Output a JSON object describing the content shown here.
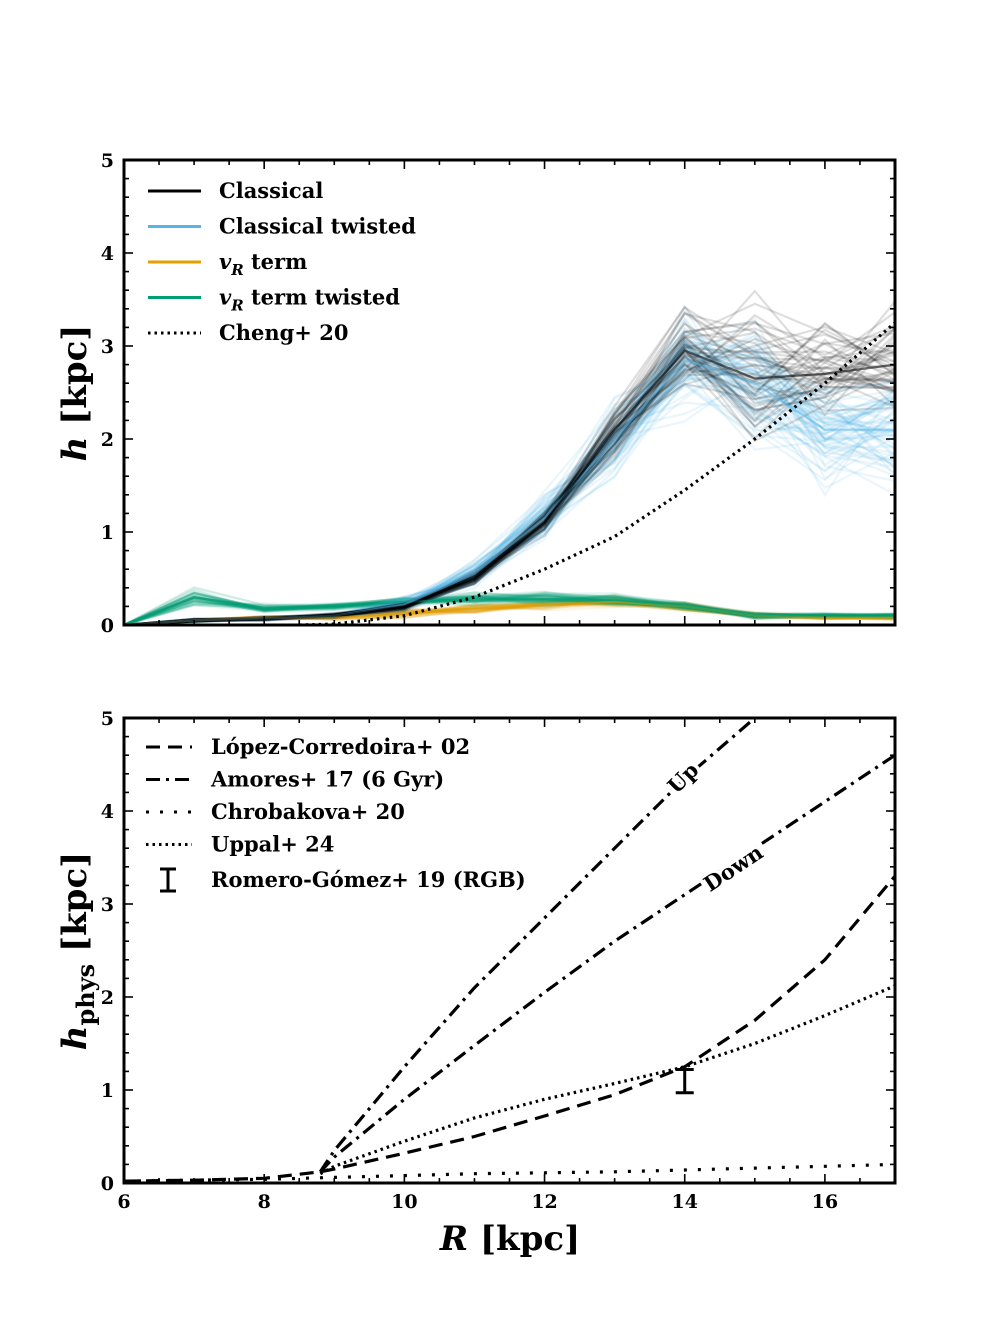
{
  "figure": {
    "top_panel": {
      "ylabel": "h [kpc]",
      "xlim": [
        6,
        17
      ],
      "ylim": [
        0,
        5
      ],
      "yticks": [
        "0",
        "1",
        "2",
        "3",
        "4",
        "5"
      ],
      "legend": [
        {
          "label": "Classical",
          "color": "#000000",
          "style": "solid"
        },
        {
          "label": "Classical twisted",
          "color": "#56b4e9",
          "style": "solid"
        },
        {
          "label": "vR term",
          "color": "#e69f00",
          "style": "solid"
        },
        {
          "label": "vR term twisted",
          "color": "#009e73",
          "style": "solid"
        },
        {
          "label": "Cheng+ 20",
          "color": "#000000",
          "style": "dotted"
        }
      ]
    },
    "bottom_panel": {
      "ylabel": "h_phys [kpc]",
      "xlabel": "R [kpc]",
      "xlim": [
        6,
        17
      ],
      "ylim": [
        0,
        5
      ],
      "xticks": [
        "6",
        "8",
        "10",
        "12",
        "14",
        "16"
      ],
      "yticks": [
        "0",
        "1",
        "2",
        "3",
        "4",
        "5"
      ],
      "legend": [
        {
          "label": "López-Corredoira+ 02",
          "style": "dashed"
        },
        {
          "label": "Amores+ 17 (6 Gyr)",
          "style": "dashdot"
        },
        {
          "label": "Chrobakova+ 20",
          "style": "loosely-dotted"
        },
        {
          "label": "Uppal+ 24",
          "style": "dotted"
        },
        {
          "label": "Romero-Gómez+ 19 (RGB)",
          "style": "errorbar"
        }
      ],
      "annotations": [
        {
          "text": "Up",
          "at_x": 14.05,
          "at_y": 4.3
        },
        {
          "text": "Down",
          "at_x": 14.75,
          "at_y": 3.32
        }
      ]
    }
  },
  "chart_data": [
    {
      "type": "line",
      "title": "",
      "xlabel": "",
      "ylabel": "h [kpc]",
      "xlim": [
        6,
        17
      ],
      "ylim": [
        0,
        5
      ],
      "x": [
        6,
        7,
        8,
        9,
        10,
        11,
        12,
        13,
        14,
        15,
        16,
        17
      ],
      "series": [
        {
          "name": "Classical (median)",
          "values": [
            0.0,
            0.05,
            0.07,
            0.1,
            0.2,
            0.5,
            1.1,
            2.1,
            2.95,
            2.65,
            2.7,
            2.8
          ],
          "spread": [
            0,
            0.02,
            0.02,
            0.03,
            0.05,
            0.08,
            0.12,
            0.3,
            0.5,
            0.8,
            0.6,
            0.6
          ]
        },
        {
          "name": "Classical twisted (median)",
          "values": [
            0.0,
            0.05,
            0.07,
            0.1,
            0.22,
            0.55,
            1.15,
            2.0,
            2.85,
            2.6,
            2.1,
            2.1
          ],
          "spread": [
            0,
            0.02,
            0.02,
            0.03,
            0.08,
            0.15,
            0.25,
            0.4,
            0.6,
            0.8,
            0.7,
            0.7
          ]
        },
        {
          "name": "vR term (median)",
          "values": [
            0.0,
            0.05,
            0.08,
            0.08,
            0.12,
            0.18,
            0.22,
            0.25,
            0.2,
            0.1,
            0.08,
            0.08
          ],
          "spread": [
            0,
            0.02,
            0.02,
            0.03,
            0.05,
            0.06,
            0.07,
            0.07,
            0.06,
            0.04,
            0.03,
            0.03
          ]
        },
        {
          "name": "vR term twisted (median)",
          "values": [
            0.0,
            0.3,
            0.18,
            0.2,
            0.25,
            0.28,
            0.28,
            0.27,
            0.2,
            0.1,
            0.1,
            0.1
          ],
          "spread": [
            0,
            0.1,
            0.05,
            0.04,
            0.06,
            0.07,
            0.08,
            0.07,
            0.06,
            0.04,
            0.03,
            0.03
          ]
        },
        {
          "name": "Cheng+ 20",
          "x": [
            8.5,
            9,
            10,
            11,
            12,
            13,
            14,
            15,
            16,
            17
          ],
          "values": [
            0.0,
            0.01,
            0.1,
            0.3,
            0.6,
            0.95,
            1.45,
            2.0,
            2.6,
            3.25
          ]
        }
      ]
    },
    {
      "type": "line",
      "title": "",
      "xlabel": "R [kpc]",
      "ylabel": "h_phys [kpc]",
      "xlim": [
        6,
        17
      ],
      "ylim": [
        0,
        5
      ],
      "series": [
        {
          "name": "López-Corredoira+ 02",
          "x": [
            6,
            7,
            8,
            8.8,
            9,
            10,
            11,
            12,
            13,
            14,
            15,
            16,
            17
          ],
          "values": [
            0.02,
            0.03,
            0.05,
            0.12,
            0.15,
            0.32,
            0.5,
            0.72,
            0.95,
            1.25,
            1.75,
            2.4,
            3.3
          ]
        },
        {
          "name": "Amores+ 17 Up",
          "x": [
            8.8,
            9,
            10,
            11,
            12,
            13,
            14,
            15
          ],
          "values": [
            0.12,
            0.35,
            1.25,
            2.1,
            2.85,
            3.6,
            4.35,
            5.0
          ]
        },
        {
          "name": "Amores+ 17 Down",
          "x": [
            8.8,
            9,
            10,
            11,
            12,
            13,
            14,
            15,
            16,
            17
          ],
          "values": [
            0.12,
            0.28,
            0.9,
            1.48,
            2.05,
            2.6,
            3.1,
            3.6,
            4.1,
            4.6
          ]
        },
        {
          "name": "Chrobakova+ 20",
          "x": [
            6,
            8,
            9,
            10,
            11,
            12,
            13,
            14,
            15,
            16,
            17
          ],
          "values": [
            0.02,
            0.04,
            0.06,
            0.08,
            0.1,
            0.11,
            0.12,
            0.14,
            0.16,
            0.18,
            0.2
          ]
        },
        {
          "name": "Uppal+ 24",
          "x": [
            8.8,
            9,
            10,
            11,
            12,
            13,
            14,
            15,
            16,
            17
          ],
          "values": [
            0.1,
            0.18,
            0.45,
            0.7,
            0.9,
            1.07,
            1.25,
            1.5,
            1.8,
            2.12
          ]
        },
        {
          "name": "Romero-Gómez+ 19 (RGB)",
          "x": [
            14
          ],
          "values": [
            1.1
          ],
          "yerr_low": [
            0.97
          ],
          "yerr_high": [
            1.22
          ]
        }
      ]
    }
  ]
}
